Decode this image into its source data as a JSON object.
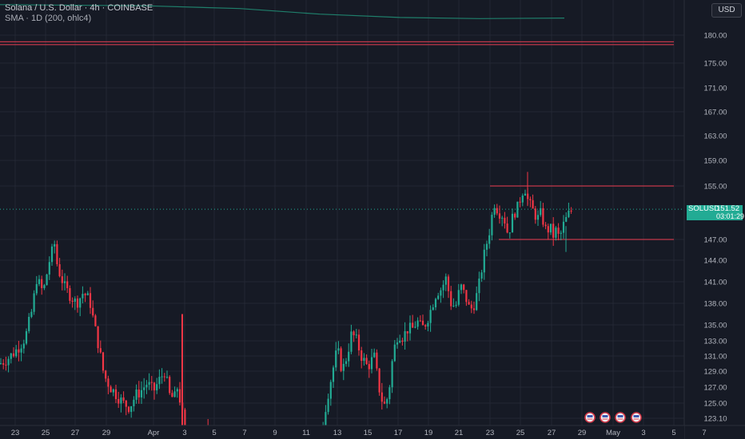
{
  "header": {
    "title": "Solana / U.S. Dollar · 4h · COINBASE",
    "indicator": "SMA · 1D (200, ohlc4)",
    "currency_button": "USD"
  },
  "price_tag": {
    "symbol": "SOLUSD",
    "price": "151.52",
    "countdown": "03:01:29"
  },
  "colors": {
    "background": "#161a25",
    "grid": "#232733",
    "up": "#22ab94",
    "down": "#f23645",
    "sma": "#1f7f6b",
    "resistance": "#c2384a",
    "text": "#b2b5be"
  },
  "chart_data": {
    "type": "candlestick",
    "y_ticks": [
      "180.00",
      "175.00",
      "171.00",
      "167.00",
      "163.00",
      "159.00",
      "155.00",
      "147.00",
      "144.00",
      "141.00",
      "138.00",
      "135.00",
      "133.00",
      "131.00",
      "129.00",
      "127.00",
      "125.00",
      "123.10"
    ],
    "x_ticks": [
      "23",
      "25",
      "27",
      "29",
      "Apr",
      "3",
      "5",
      "7",
      "9",
      "11",
      "13",
      "15",
      "17",
      "19",
      "21",
      "23",
      "25",
      "27",
      "29",
      "May",
      "3",
      "5",
      "7"
    ],
    "current_price": 151.52,
    "horizontal_lines": [
      {
        "price": 178.8,
        "from": "start",
        "to": "May 5"
      },
      {
        "price": 178.3,
        "from": "start",
        "to": "May 5"
      },
      {
        "price": 155.0,
        "from": "Apr 23",
        "to": "May 5"
      },
      {
        "price": 147.0,
        "from": "Apr 24",
        "to": "May 5"
      }
    ],
    "sma": [
      [
        0,
        184.6
      ],
      [
        180,
        184.4
      ],
      [
        300,
        183.9
      ],
      [
        400,
        182.9
      ],
      [
        500,
        182.3
      ],
      [
        600,
        182.1
      ],
      [
        706,
        182.2
      ]
    ],
    "ohlc_anchors": [
      [
        0,
        130.0
      ],
      [
        8,
        130.5
      ],
      [
        18,
        131.5
      ],
      [
        26,
        132.5
      ],
      [
        32,
        133.5
      ],
      [
        40,
        137.0
      ],
      [
        46,
        141.5
      ],
      [
        54,
        139.5
      ],
      [
        62,
        144.0
      ],
      [
        68,
        146.5
      ],
      [
        72,
        143.0
      ],
      [
        80,
        140.5
      ],
      [
        88,
        139.0
      ],
      [
        96,
        138.0
      ],
      [
        104,
        139.5
      ],
      [
        112,
        138.5
      ],
      [
        118,
        135.0
      ],
      [
        124,
        132.0
      ],
      [
        130,
        128.5
      ],
      [
        138,
        127.0
      ],
      [
        146,
        126.0
      ],
      [
        154,
        125.0
      ],
      [
        162,
        124.5
      ],
      [
        170,
        126.0
      ],
      [
        176,
        126.5
      ],
      [
        184,
        127.5
      ],
      [
        192,
        126.5
      ],
      [
        200,
        128.0
      ],
      [
        206,
        129.0
      ],
      [
        212,
        126.0
      ],
      [
        218,
        125.5
      ],
      [
        222,
        127.0
      ],
      [
        226,
        125.0
      ],
      [
        232,
        121.0
      ],
      [
        250,
        120.0
      ],
      [
        260,
        121.5
      ],
      [
        268,
        121.0
      ],
      [
        300,
        119.0
      ],
      [
        350,
        118.5
      ],
      [
        396,
        119.5
      ],
      [
        404,
        122.5
      ],
      [
        410,
        126.0
      ],
      [
        416,
        129.0
      ],
      [
        422,
        132.0
      ],
      [
        428,
        129.0
      ],
      [
        434,
        131.0
      ],
      [
        440,
        134.0
      ],
      [
        446,
        133.0
      ],
      [
        452,
        131.0
      ],
      [
        460,
        129.5
      ],
      [
        468,
        131.0
      ],
      [
        474,
        127.0
      ],
      [
        480,
        124.5
      ],
      [
        486,
        126.0
      ],
      [
        492,
        131.5
      ],
      [
        498,
        134.0
      ],
      [
        504,
        133.5
      ],
      [
        510,
        134.5
      ],
      [
        516,
        134.5
      ],
      [
        522,
        135.5
      ],
      [
        528,
        134.5
      ],
      [
        534,
        135.5
      ],
      [
        540,
        137.5
      ],
      [
        546,
        139.5
      ],
      [
        552,
        140.0
      ],
      [
        558,
        141.5
      ],
      [
        564,
        138.0
      ],
      [
        570,
        137.5
      ],
      [
        576,
        140.5
      ],
      [
        582,
        139.0
      ],
      [
        588,
        137.0
      ],
      [
        594,
        138.0
      ],
      [
        600,
        141.0
      ],
      [
        606,
        145.0
      ],
      [
        612,
        148.0
      ],
      [
        618,
        152.5
      ],
      [
        624,
        151.0
      ],
      [
        630,
        150.5
      ],
      [
        636,
        147.5
      ],
      [
        640,
        150.0
      ],
      [
        644,
        151.0
      ],
      [
        648,
        152.0
      ],
      [
        652,
        153.5
      ],
      [
        656,
        155.0
      ],
      [
        660,
        153.0
      ],
      [
        664,
        152.0
      ],
      [
        668,
        151.0
      ],
      [
        672,
        150.0
      ],
      [
        676,
        151.0
      ],
      [
        680,
        149.5
      ],
      [
        684,
        148.0
      ],
      [
        688,
        149.0
      ],
      [
        692,
        147.5
      ],
      [
        696,
        148.5
      ],
      [
        700,
        147.0
      ],
      [
        704,
        149.0
      ],
      [
        708,
        150.0
      ],
      [
        712,
        151.0
      ],
      [
        716,
        151.52
      ]
    ]
  }
}
